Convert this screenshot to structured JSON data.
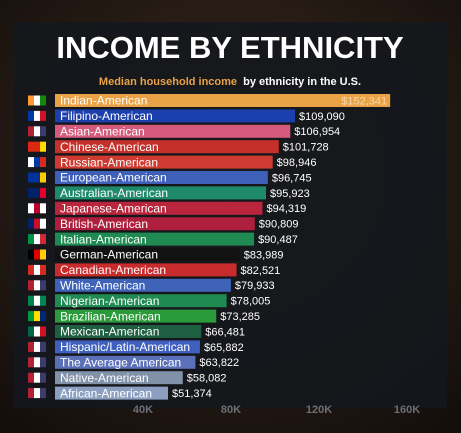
{
  "chart_data": {
    "type": "barh",
    "title": "INCOME BY ETHNICITY",
    "subtitle": [
      "Median household income",
      "by ethnicity in the U.S."
    ],
    "categories": [
      "Indian-American",
      "Filipino-American",
      "Asian-American",
      "Chinese-American",
      "Russian-American",
      "European-American",
      "Australian-American",
      "Japanese-American",
      "British-American",
      "Italian-American",
      "German-American",
      "Canadian-American",
      "White-American",
      "Nigerian-American",
      "Brazilian-American",
      "Mexican-American",
      "Hispanic/Latin-American",
      "The Average American",
      "Native-American",
      "African-American"
    ],
    "values": [
      152341,
      109090,
      106954,
      101728,
      98946,
      96745,
      95923,
      94319,
      90809,
      90487,
      83989,
      82521,
      79933,
      78005,
      73285,
      66481,
      65882,
      63822,
      58082,
      51374
    ],
    "value_labels": [
      "$152,341",
      "$109,090",
      "$106,954",
      "$101,728",
      "$98,946",
      "$96,745",
      "$95,923",
      "$94,319",
      "$90,809",
      "$90,487",
      "$83,989",
      "$82,521",
      "$79,933",
      "$78,005",
      "$73,285",
      "$66,481",
      "$65,882",
      "$63,822",
      "$58,082",
      "$51,374"
    ],
    "colors": [
      "#e9a246",
      "#1c3fae",
      "#d45b7c",
      "#c5302a",
      "#d03b31",
      "#3f60b9",
      "#1f8a6a",
      "#b8253c",
      "#ae1f3d",
      "#1f8a51",
      "#121212",
      "#c82b2b",
      "#3f63b8",
      "#1f8a51",
      "#2a9a3b",
      "#1e5e41",
      "#4060c0",
      "#5b70b8",
      "#8091a8",
      "#8ba0c0"
    ],
    "xlim": [
      0,
      175000
    ],
    "xticks": [
      {
        "value": 40000,
        "label": "40K"
      },
      {
        "value": 80000,
        "label": "80K"
      },
      {
        "value": 120000,
        "label": "120K"
      },
      {
        "value": 160000,
        "label": "160K"
      }
    ]
  }
}
